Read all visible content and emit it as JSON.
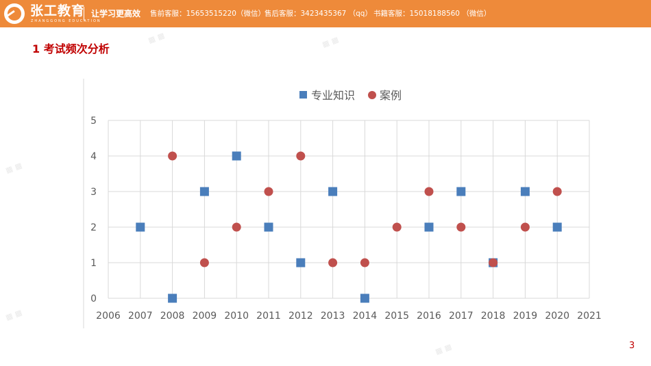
{
  "header": {
    "brand": "张工教育",
    "brand_sub": "ZHANGGONG EDUCATION",
    "slogan": "让学习更高效",
    "contact_pre": "售前客服：15653515220（微信）",
    "contact_post": "售后客服：3423435367 （qq）",
    "contact_book": "书籍客服：15018188560 （微信）",
    "bar_color": "#EE8A3A"
  },
  "slide": {
    "title": "1 考试频次分析",
    "page_number": "3"
  },
  "chart_data": {
    "type": "scatter",
    "xlim": [
      2006,
      2021
    ],
    "ylim": [
      0,
      5
    ],
    "x_ticks": [
      2006,
      2007,
      2008,
      2009,
      2010,
      2011,
      2012,
      2013,
      2014,
      2015,
      2016,
      2017,
      2018,
      2019,
      2020,
      2021
    ],
    "y_ticks": [
      0,
      1,
      2,
      3,
      4,
      5
    ],
    "grid": true,
    "legend_position": "top",
    "series": [
      {
        "name": "专业知识",
        "marker": "square",
        "color": "#4A7EBB",
        "points": [
          {
            "x": 2007,
            "y": 2
          },
          {
            "x": 2008,
            "y": 0
          },
          {
            "x": 2009,
            "y": 3
          },
          {
            "x": 2010,
            "y": 4
          },
          {
            "x": 2011,
            "y": 2
          },
          {
            "x": 2012,
            "y": 1
          },
          {
            "x": 2013,
            "y": 3
          },
          {
            "x": 2014,
            "y": 0
          },
          {
            "x": 2016,
            "y": 2
          },
          {
            "x": 2017,
            "y": 3
          },
          {
            "x": 2018,
            "y": 1
          },
          {
            "x": 2019,
            "y": 3
          },
          {
            "x": 2020,
            "y": 2
          }
        ]
      },
      {
        "name": "案例",
        "marker": "circle",
        "color": "#C0504D",
        "points": [
          {
            "x": 2008,
            "y": 4
          },
          {
            "x": 2009,
            "y": 1
          },
          {
            "x": 2010,
            "y": 2
          },
          {
            "x": 2011,
            "y": 3
          },
          {
            "x": 2012,
            "y": 4
          },
          {
            "x": 2013,
            "y": 1
          },
          {
            "x": 2014,
            "y": 1
          },
          {
            "x": 2015,
            "y": 2
          },
          {
            "x": 2016,
            "y": 3
          },
          {
            "x": 2017,
            "y": 2
          },
          {
            "x": 2018,
            "y": 1
          },
          {
            "x": 2019,
            "y": 2
          },
          {
            "x": 2020,
            "y": 3
          }
        ]
      }
    ]
  }
}
